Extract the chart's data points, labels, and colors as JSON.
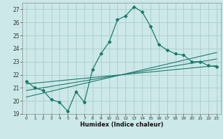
{
  "xlabel": "Humidex (Indice chaleur)",
  "bg_color": "#cce8e8",
  "grid_color": "#aacccc",
  "line_color": "#1a7a6a",
  "xlim": [
    -0.5,
    23.5
  ],
  "ylim": [
    19,
    27.5
  ],
  "xticks": [
    0,
    1,
    2,
    3,
    4,
    5,
    6,
    7,
    8,
    9,
    10,
    11,
    12,
    13,
    14,
    15,
    16,
    17,
    18,
    19,
    20,
    21,
    22,
    23
  ],
  "yticks": [
    19,
    20,
    21,
    22,
    23,
    24,
    25,
    26,
    27
  ],
  "series1_x": [
    0,
    1,
    2,
    3,
    4,
    5,
    6,
    7,
    8,
    9,
    10,
    11,
    12,
    13,
    14,
    15,
    16,
    17,
    18,
    19,
    20,
    21,
    22,
    23
  ],
  "series1_y": [
    21.5,
    21.0,
    20.8,
    20.1,
    19.9,
    19.2,
    20.7,
    19.9,
    22.4,
    23.6,
    24.5,
    26.2,
    26.5,
    27.2,
    26.8,
    25.7,
    24.3,
    23.9,
    23.6,
    23.5,
    23.0,
    23.0,
    22.7,
    22.6
  ],
  "series2_x": [
    0,
    23
  ],
  "series2_y": [
    21.3,
    22.7
  ],
  "series3_x": [
    0,
    23
  ],
  "series3_y": [
    20.8,
    23.2
  ],
  "series4_x": [
    0,
    23
  ],
  "series4_y": [
    20.3,
    23.7
  ]
}
